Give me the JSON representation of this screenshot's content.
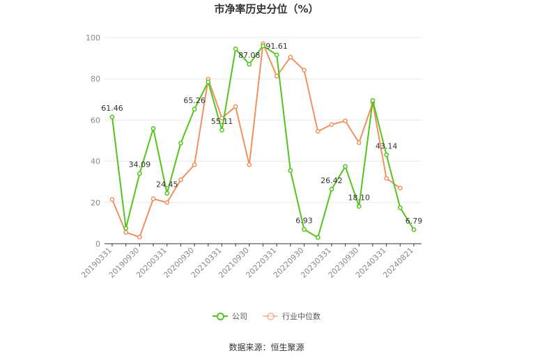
{
  "chart_data": {
    "type": "line",
    "title": "市净率历史分位（%）",
    "source_text": "数据来源：恒生聚源",
    "ylim": [
      0,
      100
    ],
    "yticks": [
      "0",
      "20",
      "40",
      "60",
      "80",
      "100"
    ],
    "xtick_labels": [
      "20190331",
      "20190930",
      "20200331",
      "20200930",
      "20210331",
      "20210930",
      "20220331",
      "20220930",
      "20230331",
      "20230930",
      "20240331",
      "20240821"
    ],
    "grid": true,
    "legend_position": "bottom",
    "series": [
      {
        "name": "公司",
        "color": "#52c41a",
        "values": [
          61.46,
          7.5,
          34.09,
          55.9,
          24.45,
          48.8,
          65.26,
          78.5,
          55.11,
          94.5,
          87.08,
          96.0,
          91.61,
          35.5,
          6.93,
          3.0,
          26.42,
          37.5,
          18.1,
          69.5,
          43.14,
          17.5,
          6.79
        ],
        "labels": [
          "61.46",
          "",
          "34.09",
          "",
          "24.45",
          "",
          "65.26",
          "",
          "55.11",
          "",
          "87.08",
          "",
          "91.61",
          "",
          "6.93",
          "",
          "26.42",
          "",
          "18.10",
          "",
          "43.14",
          "",
          "6.79"
        ]
      },
      {
        "name": "行业中位数",
        "color": "#f0905f",
        "values": [
          21.5,
          5.5,
          3.2,
          21.8,
          20.0,
          31.0,
          38.3,
          79.8,
          61.0,
          66.5,
          38.3,
          97.0,
          81.3,
          90.5,
          84.2,
          54.5,
          57.8,
          59.6,
          49.0,
          68.4,
          31.7,
          27.0,
          null
        ]
      }
    ]
  }
}
